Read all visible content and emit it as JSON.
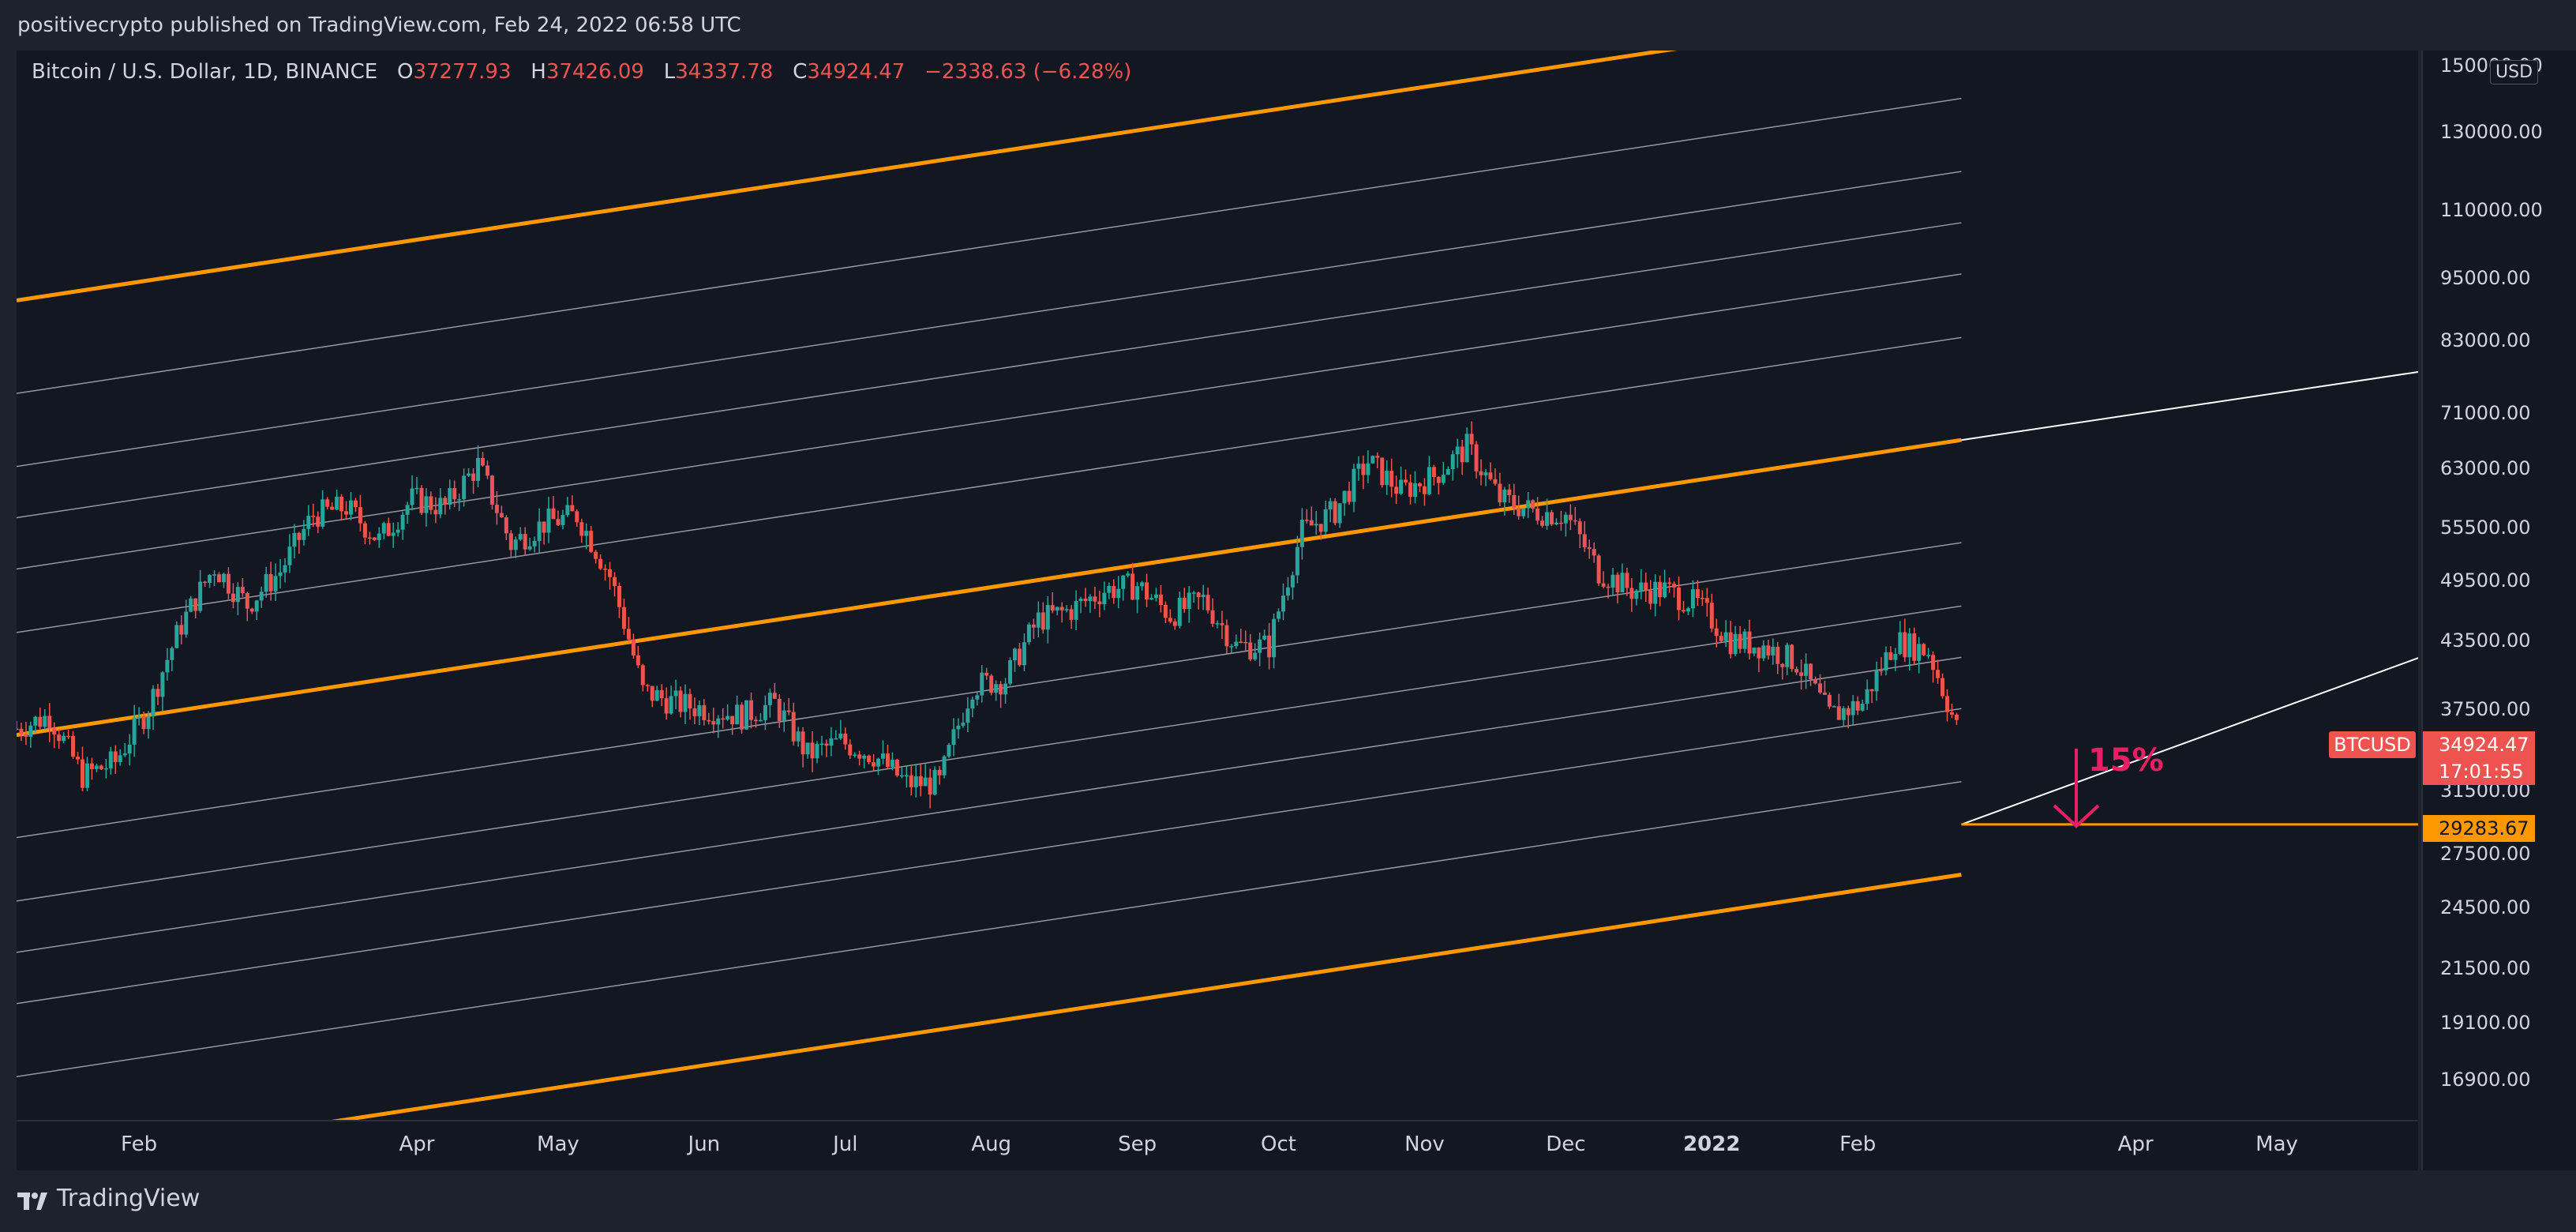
{
  "header": {
    "published_text": "positivecrypto published on TradingView.com, Feb 24, 2022 06:58 UTC"
  },
  "legend": {
    "symbol": "Bitcoin / U.S. Dollar, 1D, BINANCE",
    "open_label": "O",
    "open": "37277.93",
    "high_label": "H",
    "high": "37426.09",
    "low_label": "L",
    "low": "34337.78",
    "close_label": "C",
    "close": "34924.47",
    "change": "−2338.63 (−6.28%)"
  },
  "price_axis": {
    "currency": "USD",
    "ticks": [
      "150000.00",
      "130000.00",
      "110000.00",
      "95000.00",
      "83000.00",
      "71000.00",
      "63000.00",
      "55500.00",
      "49500.00",
      "43500.00",
      "37500.00",
      "31500.00",
      "27500.00",
      "24500.00",
      "21500.00",
      "19100.00",
      "16900.00"
    ]
  },
  "time_axis": {
    "ticks": [
      "Feb",
      "Apr",
      "May",
      "Jun",
      "Jul",
      "Aug",
      "Sep",
      "Oct",
      "Nov",
      "Dec",
      "2022",
      "Feb",
      "Apr",
      "May"
    ]
  },
  "price_tag": {
    "symbol": "BTCUSD",
    "price": "34924.47",
    "countdown": "17:01:55"
  },
  "support_tag": {
    "price": "29283.67"
  },
  "annotation": {
    "text": "15%"
  },
  "footer": {
    "brand": "TradingView"
  },
  "colors": {
    "background": "#131722",
    "up": "#26a69a",
    "down": "#ef5350",
    "channel": "#ff9800",
    "grid": "#787b86",
    "annotation": "#e91e63"
  },
  "chart_data": {
    "type": "candlestick",
    "title": "Bitcoin / U.S. Dollar, 1D, BINANCE",
    "y_scale": "log",
    "ylim": [
      15500,
      155000
    ],
    "xlim": [
      "2021-01-06",
      "2022-05-31"
    ],
    "closes_weekly": [
      {
        "date": "2021-01-06",
        "close": 36000
      },
      {
        "date": "2021-01-13",
        "close": 37000
      },
      {
        "date": "2021-01-20",
        "close": 32500
      },
      {
        "date": "2021-01-27",
        "close": 33500
      },
      {
        "date": "2021-02-03",
        "close": 37600
      },
      {
        "date": "2021-02-10",
        "close": 45000
      },
      {
        "date": "2021-02-17",
        "close": 51000
      },
      {
        "date": "2021-02-24",
        "close": 47000
      },
      {
        "date": "2021-03-03",
        "close": 50500
      },
      {
        "date": "2021-03-10",
        "close": 57000
      },
      {
        "date": "2021-03-17",
        "close": 58000
      },
      {
        "date": "2021-03-24",
        "close": 54000
      },
      {
        "date": "2021-03-31",
        "close": 59000
      },
      {
        "date": "2021-04-07",
        "close": 58000
      },
      {
        "date": "2021-04-14",
        "close": 63500
      },
      {
        "date": "2021-04-21",
        "close": 53500
      },
      {
        "date": "2021-04-28",
        "close": 56000
      },
      {
        "date": "2021-05-05",
        "close": 57000
      },
      {
        "date": "2021-05-12",
        "close": 50000
      },
      {
        "date": "2021-05-19",
        "close": 39000
      },
      {
        "date": "2021-05-26",
        "close": 38000
      },
      {
        "date": "2021-06-02",
        "close": 37500
      },
      {
        "date": "2021-06-09",
        "close": 37000
      },
      {
        "date": "2021-06-16",
        "close": 38000
      },
      {
        "date": "2021-06-23",
        "close": 34000
      },
      {
        "date": "2021-06-30",
        "close": 35000
      },
      {
        "date": "2021-07-07",
        "close": 34000
      },
      {
        "date": "2021-07-14",
        "close": 32000
      },
      {
        "date": "2021-07-21",
        "close": 32000
      },
      {
        "date": "2021-07-28",
        "close": 39500
      },
      {
        "date": "2021-08-04",
        "close": 40000
      },
      {
        "date": "2021-08-11",
        "close": 45500
      },
      {
        "date": "2021-08-18",
        "close": 46500
      },
      {
        "date": "2021-08-25",
        "close": 48500
      },
      {
        "date": "2021-09-01",
        "close": 49000
      },
      {
        "date": "2021-09-08",
        "close": 46000
      },
      {
        "date": "2021-09-15",
        "close": 47500
      },
      {
        "date": "2021-09-22",
        "close": 43000
      },
      {
        "date": "2021-09-29",
        "close": 43000
      },
      {
        "date": "2021-10-06",
        "close": 55000
      },
      {
        "date": "2021-10-13",
        "close": 57500
      },
      {
        "date": "2021-10-20",
        "close": 64000
      },
      {
        "date": "2021-10-27",
        "close": 60000
      },
      {
        "date": "2021-11-03",
        "close": 62000
      },
      {
        "date": "2021-11-10",
        "close": 66000
      },
      {
        "date": "2021-11-17",
        "close": 59000
      },
      {
        "date": "2021-11-24",
        "close": 57500
      },
      {
        "date": "2021-12-01",
        "close": 57000
      },
      {
        "date": "2021-12-08",
        "close": 50500
      },
      {
        "date": "2021-12-15",
        "close": 48500
      },
      {
        "date": "2021-12-22",
        "close": 48500
      },
      {
        "date": "2021-12-29",
        "close": 47000
      },
      {
        "date": "2022-01-05",
        "close": 43500
      },
      {
        "date": "2022-01-12",
        "close": 43000
      },
      {
        "date": "2022-01-19",
        "close": 41500
      },
      {
        "date": "2022-01-26",
        "close": 37000
      },
      {
        "date": "2022-02-02",
        "close": 38000
      },
      {
        "date": "2022-02-09",
        "close": 43500
      },
      {
        "date": "2022-02-16",
        "close": 42500
      },
      {
        "date": "2022-02-23",
        "close": 34924.47
      }
    ],
    "channel_lines": [
      {
        "style": "orange",
        "start": {
          "date": "2021-01-06",
          "price": 90500
        },
        "end": {
          "date": "2022-03-01",
          "price": 155000
        }
      },
      {
        "style": "orange",
        "start": {
          "date": "2021-01-06",
          "price": 35500
        },
        "end": {
          "date": "2022-02-23",
          "price": 67000
        }
      },
      {
        "style": "orange",
        "start": {
          "date": "2021-04-01",
          "price": 15500
        },
        "end": {
          "date": "2022-02-23",
          "price": 29283.67
        }
      }
    ],
    "support_level": 29283.67,
    "current_price": 34924.47
  }
}
